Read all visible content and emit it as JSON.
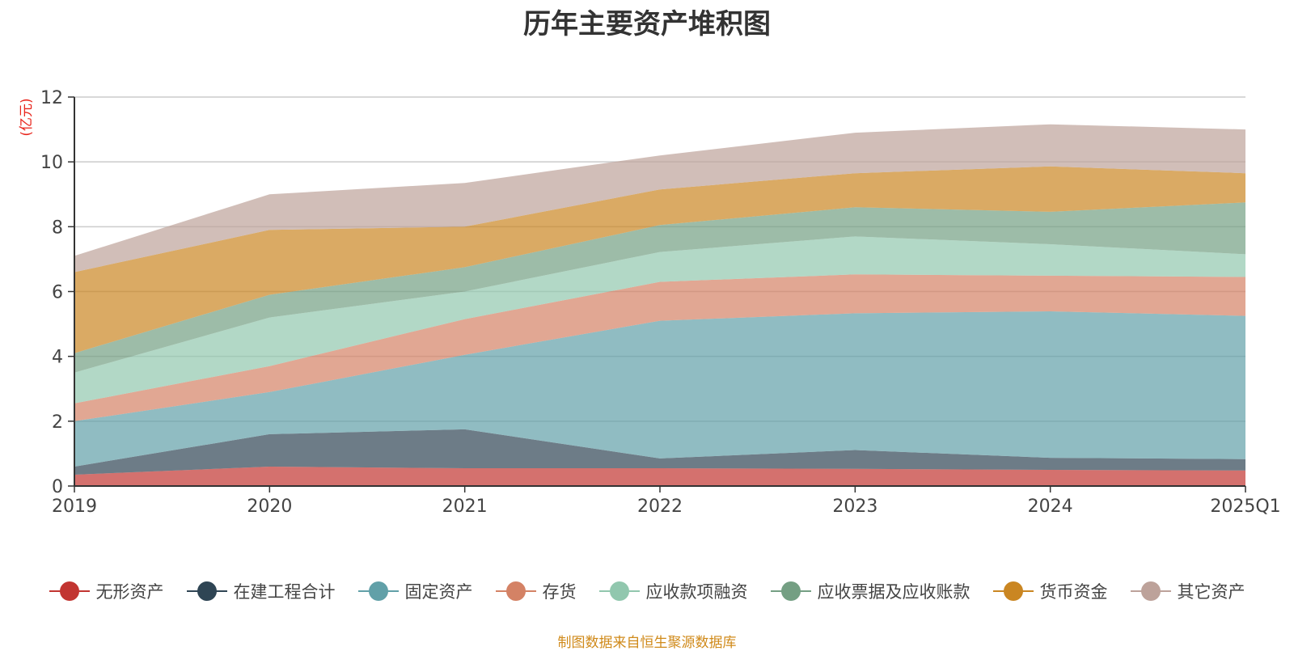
{
  "chart_data": {
    "type": "area",
    "title": "历年主要资产堆积图",
    "ylabel": "(亿元)",
    "source": "制图数据来自恒生聚源数据库",
    "categories": [
      "2019",
      "2020",
      "2021",
      "2022",
      "2023",
      "2024",
      "2025Q1"
    ],
    "ylim": [
      0,
      12
    ],
    "yticks": [
      0,
      2,
      4,
      6,
      8,
      10,
      12
    ],
    "stacked": true,
    "grid": true,
    "legend_position": "bottom",
    "series": [
      {
        "name": "无形资产",
        "color": "#c23531",
        "values": [
          0.35,
          0.6,
          0.55,
          0.55,
          0.53,
          0.5,
          0.48
        ]
      },
      {
        "name": "在建工程合计",
        "color": "#2f4554",
        "values": [
          0.25,
          1.0,
          1.2,
          0.3,
          0.58,
          0.37,
          0.35
        ]
      },
      {
        "name": "固定资产",
        "color": "#61a0a8",
        "values": [
          1.4,
          1.3,
          2.3,
          4.25,
          4.22,
          4.52,
          4.42
        ]
      },
      {
        "name": "存货",
        "color": "#d48265",
        "values": [
          0.55,
          0.8,
          1.1,
          1.2,
          1.2,
          1.1,
          1.2
        ]
      },
      {
        "name": "应收款项融资",
        "color": "#91c7ae",
        "values": [
          0.95,
          1.5,
          0.85,
          0.92,
          1.17,
          0.97,
          0.7
        ]
      },
      {
        "name": "应收票据及应收账款",
        "color": "#749f83",
        "values": [
          0.6,
          0.7,
          0.75,
          0.83,
          0.9,
          1.0,
          1.6
        ]
      },
      {
        "name": "货币资金",
        "color": "#ca8622",
        "values": [
          2.5,
          2.0,
          1.25,
          1.1,
          1.05,
          1.4,
          0.9
        ]
      },
      {
        "name": "其它资产",
        "color": "#bda29a",
        "values": [
          0.5,
          1.1,
          1.35,
          1.05,
          1.25,
          1.3,
          1.35
        ]
      }
    ]
  }
}
